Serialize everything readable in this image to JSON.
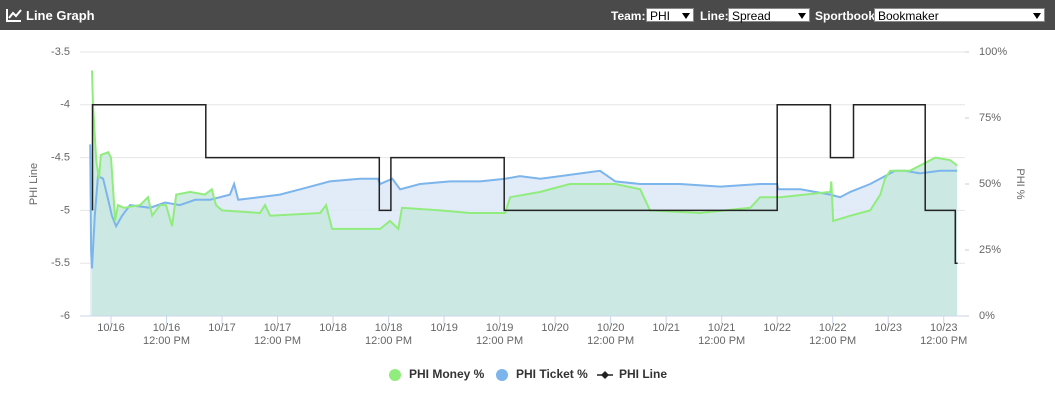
{
  "header": {
    "title": "Line Graph",
    "team_label": "Team:",
    "team": "PHI",
    "line_label": "Line:",
    "line": "Spread",
    "sportsbook_label": "Sportbook:",
    "sportsbook": "Bookmaker"
  },
  "chart_data": {
    "type": "line",
    "y_label": "PHI Line",
    "y2_label": "PHI %",
    "xlim": [
      -6.7,
      184.6
    ],
    "xticks": [
      {
        "value": 0,
        "label": "10/16"
      },
      {
        "value": 12,
        "label": "10/16\n12:00 PM"
      },
      {
        "value": 24,
        "label": "10/17"
      },
      {
        "value": 36,
        "label": "10/17\n12:00 PM"
      },
      {
        "value": 48,
        "label": "10/18"
      },
      {
        "value": 60,
        "label": "10/18\n12:00 PM"
      },
      {
        "value": 72,
        "label": "10/19"
      },
      {
        "value": 84,
        "label": "10/19\n12:00 PM"
      },
      {
        "value": 96,
        "label": "10/20"
      },
      {
        "value": 108,
        "label": "10/20\n12:00 PM"
      },
      {
        "value": 120,
        "label": "10/21"
      },
      {
        "value": 132,
        "label": "10/21\n12:00 PM"
      },
      {
        "value": 144,
        "label": "10/22"
      },
      {
        "value": 156,
        "label": "10/22\n12:00 PM"
      },
      {
        "value": 168,
        "label": "10/23"
      },
      {
        "value": 180,
        "label": "10/23\n12:00 PM"
      }
    ],
    "ylim": [
      -6,
      -3.5
    ],
    "yticks": [
      -6,
      -5.5,
      -5,
      -4.5,
      -4,
      -3.5
    ],
    "y2lim": [
      0,
      100
    ],
    "y2ticks": [
      {
        "value": 0,
        "label": "0%"
      },
      {
        "value": 25,
        "label": "25%"
      },
      {
        "value": 50,
        "label": "50%"
      },
      {
        "value": 75,
        "label": "75%"
      },
      {
        "value": 100,
        "label": "100%"
      }
    ],
    "grid": true,
    "series": [
      {
        "name": "PHI Ticket %",
        "color": "#7cb5ec",
        "area_color": "#dde8f7",
        "axis": "y2",
        "x": [
          -4.5,
          -4.3,
          -4.1,
          -3.5,
          -2.8,
          -1.7,
          -0.6,
          0.2,
          1.1,
          2.4,
          4.1,
          8.4,
          11.7,
          14.9,
          18.2,
          21.4,
          25.7,
          26.6,
          27.5,
          36.5,
          40.9,
          47.3,
          53.8,
          57.7,
          58.2,
          60.8,
          62.5,
          66.8,
          73.3,
          79.8,
          85.2,
          88.4,
          92.8,
          97.1,
          105.7,
          109,
          114.4,
          123,
          131.7,
          140.3,
          144,
          144.2,
          149,
          152.2,
          155.5,
          157.6,
          159.8,
          164.1,
          167.3,
          169.5,
          171.6,
          174.9,
          179.2,
          182.9
        ],
        "values": [
          65,
          25,
          18,
          38,
          53,
          52,
          44,
          38,
          34,
          38,
          42,
          41,
          43,
          42,
          44,
          44,
          46,
          50,
          44,
          46,
          48,
          51,
          52,
          52,
          50,
          52,
          48,
          50,
          51,
          51,
          52,
          53,
          52,
          53,
          55,
          51,
          50,
          50,
          49,
          50,
          50,
          48,
          48,
          47,
          46,
          45,
          47,
          50,
          53,
          55,
          55,
          54,
          55,
          55
        ]
      },
      {
        "name": "PHI Money %",
        "color": "#90ed7d",
        "area_color": "#c8e7df",
        "axis": "y2",
        "x": [
          -4.1,
          -3.9,
          -3.2,
          -2.6,
          -2.2,
          -0.6,
          0,
          0.9,
          1.5,
          2.8,
          6.3,
          8.0,
          8.9,
          10.6,
          11.9,
          13.2,
          14.1,
          17.1,
          20.3,
          21.8,
          22.7,
          24.0,
          32.2,
          33.3,
          34.4,
          45.2,
          46.5,
          47.8,
          56.0,
          58.2,
          60.3,
          62.1,
          62.9,
          71.1,
          77.6,
          85.2,
          86.3,
          92.8,
          99.2,
          109.0,
          114.4,
          116.5,
          127.3,
          138.2,
          140.3,
          143.6,
          144.7,
          155.5,
          155.7,
          156.1,
          159.8,
          164.1,
          166.3,
          167.3,
          168.4,
          172.7,
          178.2,
          181.4,
          182.9
        ],
        "values": [
          93,
          80,
          59,
          52,
          61,
          62,
          60,
          36,
          42,
          41,
          42,
          45,
          38,
          42,
          42,
          34,
          46,
          47,
          46,
          48,
          42,
          40,
          39,
          42,
          38,
          39,
          42,
          33,
          33,
          33,
          36,
          33,
          41,
          40,
          39,
          39,
          45,
          47,
          50,
          50,
          48,
          40,
          39,
          41,
          45,
          45,
          45,
          47,
          51,
          36,
          38,
          40,
          46,
          52,
          55,
          55,
          60,
          59,
          57
        ]
      },
      {
        "name": "PHI Line",
        "color": "#222222",
        "x": [
          -4,
          -4,
          20.5,
          20.5,
          58,
          58,
          60.5,
          60.5,
          85,
          85,
          144,
          144,
          155.5,
          155.5,
          160.5,
          160.5,
          176,
          176,
          182.5,
          182.5,
          183
        ],
        "values": [
          -5,
          -4,
          -4,
          -4.5,
          -4.5,
          -5,
          -5,
          -4.5,
          -4.5,
          -5,
          -5,
          -4,
          -4,
          -4.5,
          -4.5,
          -4,
          -4,
          -5,
          -5,
          -5.5,
          -5.5
        ]
      }
    ],
    "legend_order": [
      1,
      0,
      2
    ]
  }
}
